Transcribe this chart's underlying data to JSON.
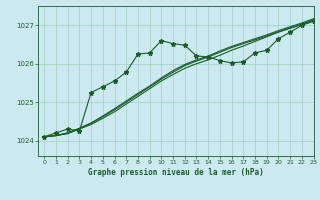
{
  "title": "Graphe pression niveau de la mer (hPa)",
  "background_color": "#cce8f0",
  "grid_color": "#a8d4c8",
  "line_color": "#1a5c2a",
  "xlim": [
    -0.5,
    23
  ],
  "ylim": [
    1023.6,
    1027.5
  ],
  "yticks": [
    1024,
    1025,
    1026,
    1027
  ],
  "xticks": [
    0,
    1,
    2,
    3,
    4,
    5,
    6,
    7,
    8,
    9,
    10,
    11,
    12,
    13,
    14,
    15,
    16,
    17,
    18,
    19,
    20,
    21,
    22,
    23
  ],
  "series1_x": [
    0,
    1,
    2,
    3,
    4,
    5,
    6,
    7,
    8,
    9,
    10,
    11,
    12,
    13,
    14,
    15,
    16,
    17,
    18,
    19,
    20,
    21,
    22,
    23
  ],
  "series1_y": [
    1024.1,
    1024.2,
    1024.3,
    1024.25,
    1025.25,
    1025.4,
    1025.55,
    1025.78,
    1026.25,
    1026.28,
    1026.6,
    1026.52,
    1026.48,
    1026.2,
    1026.18,
    1026.08,
    1026.02,
    1026.05,
    1026.28,
    1026.35,
    1026.65,
    1026.82,
    1027.0,
    1027.1
  ],
  "series2_x": [
    0,
    1,
    2,
    3,
    4,
    5,
    6,
    7,
    8,
    9,
    10,
    11,
    12,
    13,
    14,
    15,
    16,
    17,
    18,
    19,
    20,
    21,
    22,
    23
  ],
  "series2_y": [
    1024.1,
    1024.13,
    1024.18,
    1024.3,
    1024.42,
    1024.58,
    1024.75,
    1024.95,
    1025.15,
    1025.35,
    1025.55,
    1025.72,
    1025.88,
    1026.0,
    1026.1,
    1026.22,
    1026.35,
    1026.46,
    1026.58,
    1026.7,
    1026.82,
    1026.92,
    1027.02,
    1027.13
  ],
  "series3_x": [
    0,
    1,
    2,
    3,
    4,
    5,
    6,
    7,
    8,
    9,
    10,
    11,
    12,
    13,
    14,
    15,
    16,
    17,
    18,
    19,
    20,
    21,
    22,
    23
  ],
  "series3_y": [
    1024.1,
    1024.13,
    1024.2,
    1024.32,
    1024.45,
    1024.62,
    1024.8,
    1025.0,
    1025.2,
    1025.4,
    1025.6,
    1025.78,
    1025.95,
    1026.07,
    1026.17,
    1026.3,
    1026.42,
    1026.52,
    1026.62,
    1026.72,
    1026.83,
    1026.93,
    1027.03,
    1027.14
  ],
  "series4_x": [
    0,
    1,
    2,
    3,
    4,
    5,
    6,
    7,
    8,
    9,
    10,
    11,
    12,
    13,
    14,
    15,
    16,
    17,
    18,
    19,
    20,
    21,
    22,
    23
  ],
  "series4_y": [
    1024.1,
    1024.13,
    1024.2,
    1024.32,
    1024.46,
    1024.64,
    1024.83,
    1025.03,
    1025.23,
    1025.42,
    1025.63,
    1025.82,
    1025.98,
    1026.1,
    1026.2,
    1026.33,
    1026.45,
    1026.55,
    1026.65,
    1026.75,
    1026.86,
    1026.96,
    1027.06,
    1027.17
  ]
}
